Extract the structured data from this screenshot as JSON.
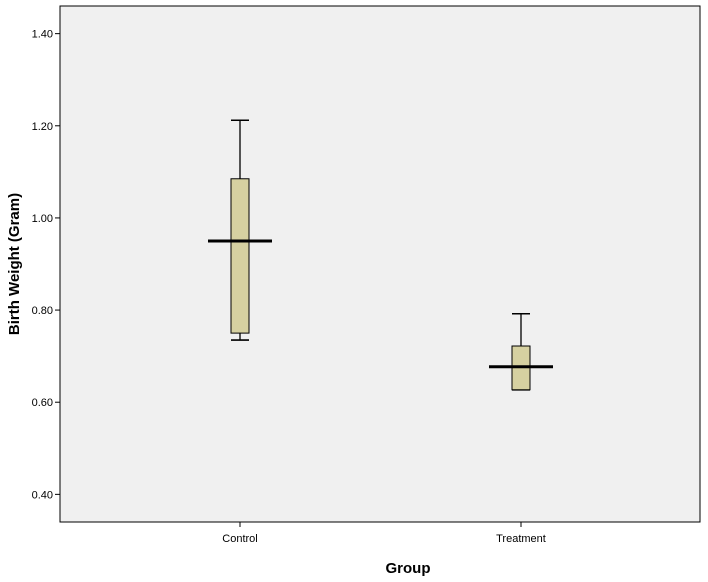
{
  "chart_data": {
    "type": "boxplot",
    "title": "",
    "xlabel": "Group",
    "ylabel": "Birth Weight (Gram)",
    "ylim": [
      0.34,
      1.46
    ],
    "y_ticks": [
      0.4,
      0.6,
      0.8,
      1.0,
      1.2,
      1.4
    ],
    "y_tick_labels": [
      "0.40",
      "0.60",
      "0.80",
      "1.00",
      "1.20",
      "1.40"
    ],
    "categories": [
      "Control",
      "Treatment"
    ],
    "boxes": [
      {
        "category": "Control",
        "whisker_low": 0.735,
        "q1": 0.75,
        "median": 0.95,
        "q3": 1.085,
        "whisker_high": 1.212
      },
      {
        "category": "Treatment",
        "whisker_low": 0.627,
        "q1": 0.627,
        "median": 0.677,
        "q3": 0.722,
        "whisker_high": 0.792
      }
    ],
    "grid": false,
    "colors": {
      "plot_background": "#f0f0f0",
      "box_fill": "#d6d1a1",
      "line": "#000000"
    }
  }
}
